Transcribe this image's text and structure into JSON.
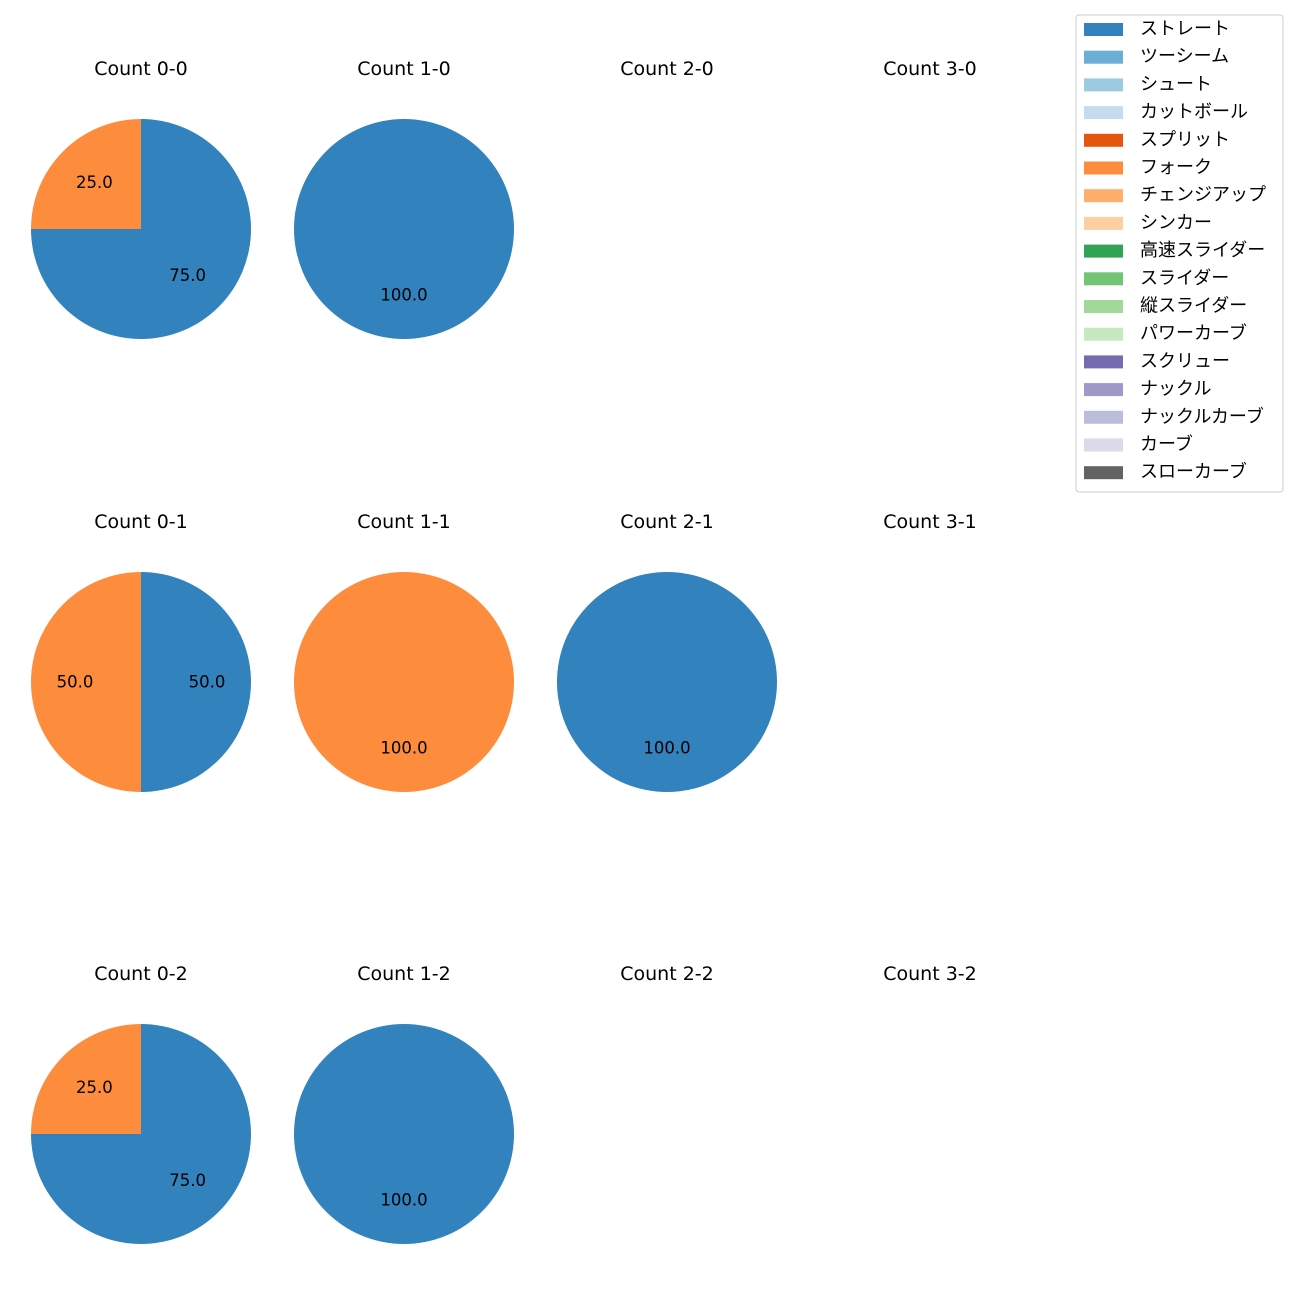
{
  "chart_data": [
    {
      "type": "pie",
      "title": "Count 0-0",
      "slices": [
        {
          "label": "ストレート",
          "value": 75.0,
          "color": "#3182bd"
        },
        {
          "label": "フォーク",
          "value": 25.0,
          "color": "#fd8d3c"
        }
      ],
      "labels": [
        "75.0",
        "25.0"
      ]
    },
    {
      "type": "pie",
      "title": "Count 1-0",
      "slices": [
        {
          "label": "ストレート",
          "value": 100.0,
          "color": "#3182bd"
        }
      ],
      "labels": [
        "100.0"
      ]
    },
    {
      "type": "pie",
      "title": "Count 2-0",
      "slices": [],
      "labels": []
    },
    {
      "type": "pie",
      "title": "Count 3-0",
      "slices": [],
      "labels": []
    },
    {
      "type": "pie",
      "title": "Count 0-1",
      "slices": [
        {
          "label": "ストレート",
          "value": 50.0,
          "color": "#3182bd"
        },
        {
          "label": "フォーク",
          "value": 50.0,
          "color": "#fd8d3c"
        }
      ],
      "labels": [
        "50.0",
        "50.0"
      ]
    },
    {
      "type": "pie",
      "title": "Count 1-1",
      "slices": [
        {
          "label": "フォーク",
          "value": 100.0,
          "color": "#fd8d3c"
        }
      ],
      "labels": [
        "100.0"
      ]
    },
    {
      "type": "pie",
      "title": "Count 2-1",
      "slices": [
        {
          "label": "ストレート",
          "value": 100.0,
          "color": "#3182bd"
        }
      ],
      "labels": [
        "100.0"
      ]
    },
    {
      "type": "pie",
      "title": "Count 3-1",
      "slices": [],
      "labels": []
    },
    {
      "type": "pie",
      "title": "Count 0-2",
      "slices": [
        {
          "label": "ストレート",
          "value": 75.0,
          "color": "#3182bd"
        },
        {
          "label": "フォーク",
          "value": 25.0,
          "color": "#fd8d3c"
        }
      ],
      "labels": [
        "75.0",
        "25.0"
      ]
    },
    {
      "type": "pie",
      "title": "Count 1-2",
      "slices": [
        {
          "label": "ストレート",
          "value": 100.0,
          "color": "#3182bd"
        }
      ],
      "labels": [
        "100.0"
      ]
    },
    {
      "type": "pie",
      "title": "Count 2-2",
      "slices": [],
      "labels": []
    },
    {
      "type": "pie",
      "title": "Count 3-2",
      "slices": [],
      "labels": []
    }
  ],
  "legend": {
    "placement": "top-right",
    "entries": [
      {
        "label": "ストレート",
        "color": "#3182bd"
      },
      {
        "label": "ツーシーム",
        "color": "#6baed6"
      },
      {
        "label": "シュート",
        "color": "#9ecae1"
      },
      {
        "label": "カットボール",
        "color": "#c6dbef"
      },
      {
        "label": "スプリット",
        "color": "#e6550d"
      },
      {
        "label": "フォーク",
        "color": "#fd8d3c"
      },
      {
        "label": "チェンジアップ",
        "color": "#fdae6b"
      },
      {
        "label": "シンカー",
        "color": "#fdd0a2"
      },
      {
        "label": "高速スライダー",
        "color": "#31a354"
      },
      {
        "label": "スライダー",
        "color": "#74c476"
      },
      {
        "label": "縦スライダー",
        "color": "#a1d99b"
      },
      {
        "label": "パワーカーブ",
        "color": "#c7e9c0"
      },
      {
        "label": "スクリュー",
        "color": "#756bb1"
      },
      {
        "label": "ナックル",
        "color": "#9e9ac8"
      },
      {
        "label": "ナックルカーブ",
        "color": "#bcbddc"
      },
      {
        "label": "カーブ",
        "color": "#dadaeb"
      },
      {
        "label": "スローカーブ",
        "color": "#636363"
      }
    ]
  }
}
